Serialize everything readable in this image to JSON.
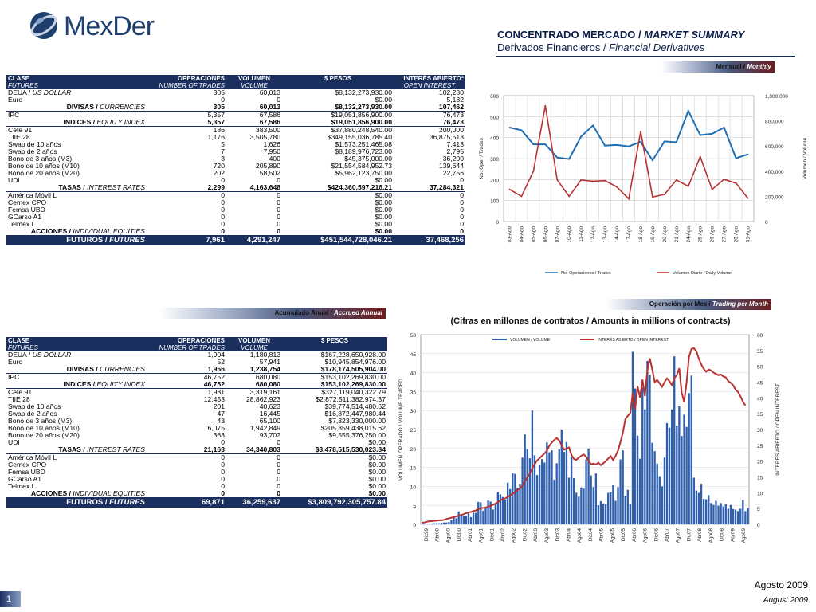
{
  "logo": {
    "text": "MexDer"
  },
  "header": {
    "title_es": "CONCENTRADO MERCADO / ",
    "title_en": "MARKET SUMMARY",
    "subtitle_es": "Derivados Financieros / ",
    "subtitle_en": "Financial Derivatives"
  },
  "banners": {
    "monthly": {
      "es": "Mensual / ",
      "en": "Monthly"
    },
    "annual": {
      "es": "Acumulado Anual / ",
      "en": "Accrued Annual"
    },
    "trading": {
      "es": "Operación por Mes / ",
      "en": "Trading per Month"
    }
  },
  "colors": {
    "navy": "#1b2f5f",
    "blue_series": "#1f6fb5",
    "red_series": "#b83232",
    "bar_blue": "#2e5fae",
    "line_red": "#b83232"
  },
  "table_monthly": {
    "headers": {
      "clase": "CLASE",
      "ops": "OPERACIONES",
      "vol": "VOLUMEN",
      "pesos": "$ PESOS",
      "oi": "INTERÉS ABIERTO*"
    },
    "headers_en": {
      "clase": "FUTURES",
      "ops": "NUMBER OF TRADES",
      "vol": "VOLUME",
      "oi": "OPEN INTEREST"
    },
    "rows": [
      {
        "type": "row",
        "label_es": "DEUA",
        "label_en": "US DOLLAR",
        "ops": "305",
        "vol": "60,013",
        "pesos": "$8,132,273,930.00",
        "oi": "102,280"
      },
      {
        "type": "row",
        "label_es": "Euro",
        "label_en": "",
        "ops": "0",
        "vol": "0",
        "pesos": "$0.00",
        "oi": "5,182"
      },
      {
        "type": "sub",
        "label_es": "DIVISAS",
        "label_en": "CURRENCIES",
        "ops": "305",
        "vol": "60,013",
        "pesos": "$8,132,273,930.00",
        "oi": "107,462"
      },
      {
        "type": "row",
        "label_es": "IPC",
        "label_en": "",
        "ops": "5,357",
        "vol": "67,586",
        "pesos": "$19,051,856,900.00",
        "oi": "76,473"
      },
      {
        "type": "sub",
        "label_es": "INDICES",
        "label_en": "EQUITY INDEX",
        "ops": "5,357",
        "vol": "67,586",
        "pesos": "$19,051,856,900.00",
        "oi": "76,473"
      },
      {
        "type": "row",
        "label_es": "Cete 91",
        "label_en": "",
        "ops": "186",
        "vol": "383,500",
        "pesos": "$37,880,248,540.00",
        "oi": "200,000"
      },
      {
        "type": "row",
        "label_es": "TIIE 28",
        "label_en": "",
        "ops": "1,176",
        "vol": "3,505,780",
        "pesos": "$349,155,036,785.40",
        "oi": "36,875,513"
      },
      {
        "type": "row",
        "label_es": "Swap de 10 años",
        "label_en": "",
        "ops": "5",
        "vol": "1,626",
        "pesos": "$1,573,251,465.08",
        "oi": "7,413"
      },
      {
        "type": "row",
        "label_es": "Swap de 2 años",
        "label_en": "",
        "ops": "7",
        "vol": "7,950",
        "pesos": "$8,189,976,723.00",
        "oi": "2,795"
      },
      {
        "type": "row",
        "label_es": "Bono de 3 años (M3)",
        "label_en": "",
        "ops": "3",
        "vol": "400",
        "pesos": "$45,375,000.00",
        "oi": "36,200"
      },
      {
        "type": "row",
        "label_es": "Bono de 10 años (M10)",
        "label_en": "",
        "ops": "720",
        "vol": "205,890",
        "pesos": "$21,554,584,952.73",
        "oi": "139,644"
      },
      {
        "type": "row",
        "label_es": "Bono de 20 años (M20)",
        "label_en": "",
        "ops": "202",
        "vol": "58,502",
        "pesos": "$5,962,123,750.00",
        "oi": "22,756"
      },
      {
        "type": "row",
        "label_es": "UDI",
        "label_en": "",
        "ops": "0",
        "vol": "0",
        "pesos": "$0.00",
        "oi": "0"
      },
      {
        "type": "sub",
        "label_es": "TASAS",
        "label_en": "INTEREST RATES",
        "ops": "2,299",
        "vol": "4,163,648",
        "pesos": "$424,360,597,216.21",
        "oi": "37,284,321"
      },
      {
        "type": "row",
        "label_es": "América Móvil L",
        "label_en": "",
        "ops": "0",
        "vol": "0",
        "pesos": "$0.00",
        "oi": "0"
      },
      {
        "type": "row",
        "label_es": "Cemex CPO",
        "label_en": "",
        "ops": "0",
        "vol": "0",
        "pesos": "$0.00",
        "oi": "0"
      },
      {
        "type": "row",
        "label_es": "Femsa UBD",
        "label_en": "",
        "ops": "0",
        "vol": "0",
        "pesos": "$0.00",
        "oi": "0"
      },
      {
        "type": "row",
        "label_es": "GCarso A1",
        "label_en": "",
        "ops": "0",
        "vol": "0",
        "pesos": "$0.00",
        "oi": "0"
      },
      {
        "type": "row",
        "label_es": "Telmex L",
        "label_en": "",
        "ops": "0",
        "vol": "0",
        "pesos": "$0.00",
        "oi": "0"
      },
      {
        "type": "sub",
        "label_es": "ACCIONES",
        "label_en": "INDIVIDUAL EQUITIES",
        "ops": "0",
        "vol": "0",
        "pesos": "$0.00",
        "oi": "0"
      },
      {
        "type": "tot",
        "label_es": "FUTUROS",
        "label_en": "FUTURES",
        "ops": "7,961",
        "vol": "4,291,247",
        "pesos": "$451,544,728,046.21",
        "oi": "37,468,256"
      }
    ]
  },
  "table_annual": {
    "headers": {
      "clase": "CLASE",
      "ops": "OPERACIONES",
      "vol": "VOLUMEN",
      "pesos": "$ PESOS"
    },
    "headers_en": {
      "clase": "FUTURES",
      "ops": "NUMBER OF TRADES",
      "vol": "VOLUME"
    },
    "rows": [
      {
        "type": "row",
        "label_es": "DEUA",
        "label_en": "US DOLLAR",
        "ops": "1,904",
        "vol": "1,180,813",
        "pesos": "$167,228,650,928.00"
      },
      {
        "type": "row",
        "label_es": "Euro",
        "label_en": "",
        "ops": "52",
        "vol": "57,941",
        "pesos": "$10,945,854,976.00"
      },
      {
        "type": "sub",
        "label_es": "DIVISAS",
        "label_en": "CURRENCIES",
        "ops": "1,956",
        "vol": "1,238,754",
        "pesos": "$178,174,505,904.00"
      },
      {
        "type": "row",
        "label_es": "IPC",
        "label_en": "",
        "ops": "46,752",
        "vol": "680,080",
        "pesos": "$153,102,269,830.00"
      },
      {
        "type": "sub",
        "label_es": "INDICES",
        "label_en": "EQUITY INDEX",
        "ops": "46,752",
        "vol": "680,080",
        "pesos": "$153,102,269,830.00"
      },
      {
        "type": "row",
        "label_es": "Cete 91",
        "label_en": "",
        "ops": "1,981",
        "vol": "3,319,161",
        "pesos": "$327,119,040,322.79"
      },
      {
        "type": "row",
        "label_es": "TIIE 28",
        "label_en": "",
        "ops": "12,453",
        "vol": "28,862,923",
        "pesos": "$2,872,511,382,974.37"
      },
      {
        "type": "row",
        "label_es": "Swap de 10 años",
        "label_en": "",
        "ops": "201",
        "vol": "40,623",
        "pesos": "$39,774,514,480.62"
      },
      {
        "type": "row",
        "label_es": "Swap de 2 años",
        "label_en": "",
        "ops": "47",
        "vol": "16,445",
        "pesos": "$16,872,447,980.44"
      },
      {
        "type": "row",
        "label_es": "Bono de 3 años (M3)",
        "label_en": "",
        "ops": "43",
        "vol": "65,100",
        "pesos": "$7,323,330,000.00"
      },
      {
        "type": "row",
        "label_es": "Bono de 10 años (M10)",
        "label_en": "",
        "ops": "6,075",
        "vol": "1,942,849",
        "pesos": "$205,359,438,015.62"
      },
      {
        "type": "row",
        "label_es": "Bono de 20 años (M20)",
        "label_en": "",
        "ops": "363",
        "vol": "93,702",
        "pesos": "$9,555,376,250.00"
      },
      {
        "type": "row",
        "label_es": "UDI",
        "label_en": "",
        "ops": "0",
        "vol": "0",
        "pesos": "$0.00"
      },
      {
        "type": "sub",
        "label_es": "TASAS",
        "label_en": "INTEREST RATES",
        "ops": "21,163",
        "vol": "34,340,803",
        "pesos": "$3,478,515,530,023.84"
      },
      {
        "type": "row",
        "label_es": "América Móvil L",
        "label_en": "",
        "ops": "0",
        "vol": "0",
        "pesos": "$0.00"
      },
      {
        "type": "row",
        "label_es": "Cemex CPO",
        "label_en": "",
        "ops": "0",
        "vol": "0",
        "pesos": "$0.00"
      },
      {
        "type": "row",
        "label_es": "Femsa UBD",
        "label_en": "",
        "ops": "0",
        "vol": "0",
        "pesos": "$0.00"
      },
      {
        "type": "row",
        "label_es": "GCarso A1",
        "label_en": "",
        "ops": "0",
        "vol": "0",
        "pesos": "$0.00"
      },
      {
        "type": "row",
        "label_es": "Telmex L",
        "label_en": "",
        "ops": "0",
        "vol": "0",
        "pesos": "$0.00"
      },
      {
        "type": "sub",
        "label_es": "ACCIONES",
        "label_en": "INDIVIDUAL EQUITIES",
        "ops": "0",
        "vol": "0",
        "pesos": "$0.00"
      },
      {
        "type": "tot",
        "label_es": "FUTUROS",
        "label_en": "FUTURES",
        "ops": "69,871",
        "vol": "36,259,637",
        "pesos": "$3,809,792,305,757.84"
      }
    ]
  },
  "chart_data": [
    {
      "type": "line",
      "x": [
        "03-Ago",
        "04-Ago",
        "05-Ago",
        "06-Ago",
        "07-Ago",
        "10-Ago",
        "11-Ago",
        "12-Ago",
        "13-Ago",
        "14-Ago",
        "17-Ago",
        "18-Ago",
        "19-Ago",
        "20-Ago",
        "21-Ago",
        "24-Ago",
        "25-Ago",
        "26-Ago",
        "27-Ago",
        "28-Ago",
        "31-Ago"
      ],
      "ylabel": "No. Oper / Trades",
      "y2label": "Volumen / Volume",
      "ylim": [
        0,
        600
      ],
      "y2lim": [
        0,
        1000000
      ],
      "y_ticks": [
        "0",
        "100",
        "200",
        "300",
        "400",
        "500",
        "600"
      ],
      "y2_ticks": [
        "0",
        "200,000",
        "400,000",
        "600,000",
        "800,000",
        "1,000,000"
      ],
      "series": [
        {
          "name": "No. Operaciones / Trades",
          "axis": "left",
          "values": [
            448,
            435,
            368,
            368,
            305,
            298,
            405,
            458,
            362,
            365,
            358,
            380,
            292,
            382,
            378,
            528,
            412,
            418,
            448,
            302,
            320
          ]
        },
        {
          "name": "Volumen Diario / Daily Volume",
          "axis": "right",
          "values": [
            255000,
            200000,
            400000,
            920000,
            330000,
            200000,
            330000,
            320000,
            325000,
            275000,
            180000,
            715000,
            195000,
            215000,
            330000,
            280000,
            515000,
            255000,
            335000,
            305000,
            185000
          ]
        }
      ],
      "legend": "bottom"
    },
    {
      "type": "bar",
      "title": "(Cifras en millones de contratos / Amounts in millions of contracts)",
      "x_ticks": [
        "Dic99",
        "Abr00",
        "Ago00",
        "Dic00",
        "Abr01",
        "Ago01",
        "Dic01",
        "Abr02",
        "Ago02",
        "Dic02",
        "Abr03",
        "Ago03",
        "Dic03",
        "Abr04",
        "Ago04",
        "Dic04",
        "Abr05",
        "Ago05",
        "Dic05",
        "Abr06",
        "Ago06",
        "Dic06",
        "Abr07",
        "Ago07",
        "Dic07",
        "Abr08",
        "Ago08",
        "Dic08",
        "Abr09",
        "Ago09"
      ],
      "ylabel": "VOLUMEN OPERADO / VOLUME TRADED",
      "y2label": "INTERÉS ABIERTO / OPEN INTEREST",
      "ylim": [
        0,
        50
      ],
      "y2lim": [
        0,
        60
      ],
      "y_ticks": [
        "0",
        "5",
        "10",
        "15",
        "20",
        "25",
        "30",
        "35",
        "40",
        "45",
        "50"
      ],
      "y2_ticks": [
        "0",
        "5",
        "10",
        "15",
        "20",
        "25",
        "30",
        "35",
        "40",
        "45",
        "50",
        "55",
        "60"
      ],
      "series": [
        {
          "name": "VOLUMEN / VOLUME",
          "axis": "left",
          "type": "bar",
          "values": [
            0.2,
            0.1,
            0.2,
            0.2,
            0.2,
            0.3,
            0.3,
            0.3,
            0.4,
            0.5,
            0.5,
            0.6,
            1.1,
            2.2,
            1.6,
            3.4,
            2.5,
            2.1,
            2.3,
            2.9,
            1.9,
            3.1,
            3.0,
            5.9,
            5.8,
            3.6,
            4.6,
            6.3,
            6.0,
            3.9,
            5.6,
            8.4,
            7.9,
            7.2,
            6.5,
            11.0,
            9.3,
            13.5,
            13.3,
            9.6,
            10.7,
            17.6,
            23.7,
            19.8,
            17.4,
            30.0,
            18.2,
            13.0,
            15.6,
            17.2,
            16.3,
            21.6,
            19.0,
            19.5,
            11.8,
            16.1,
            19.8,
            25.0,
            19.1,
            21.7,
            12.3,
            17.7,
            12.2,
            8.3,
            7.3,
            9.7,
            9.4,
            17.1,
            20.0,
            12.9,
            9.8,
            13.4,
            5.0,
            6.1,
            5.5,
            5.3,
            8.3,
            8.4,
            10.4,
            6.2,
            9.8,
            17.1,
            19.5,
            7.5,
            9.1,
            5.4,
            45.5,
            35.8,
            23.4,
            17.3,
            36.2,
            30.3,
            43.1,
            39.5,
            21.5,
            19.3,
            16.0,
            12.7,
            10.0,
            17.6,
            26.7,
            25.5,
            30.3,
            44.3,
            26.0,
            31.1,
            23.3,
            28.9,
            25.7,
            34.6,
            39.2,
            12.3,
            8.9,
            8.3,
            10.7,
            6.7,
            6.6,
            7.7,
            5.6,
            5.1,
            6.2,
            4.9,
            5.6,
            4.7,
            5.3,
            4.1,
            5.1,
            4.0,
            3.9,
            3.5,
            4.1,
            6.4,
            3.5,
            4.3
          ]
        },
        {
          "name": "INTERÉS ABIERTO / OPEN INTEREST",
          "axis": "right",
          "type": "line",
          "values": [
            0.5,
            0.6,
            0.8,
            1.0,
            1.0,
            1.1,
            1.2,
            1.3,
            1.3,
            1.4,
            1.7,
            1.9,
            2.1,
            2.3,
            2.5,
            2.8,
            3.0,
            3.2,
            3.5,
            3.8,
            3.9,
            4.2,
            4.4,
            4.8,
            5.1,
            5.2,
            5.3,
            5.6,
            5.8,
            6.2,
            6.5,
            7.0,
            7.6,
            8.0,
            8.2,
            8.7,
            9.1,
            9.7,
            10.2,
            11.0,
            11.2,
            12.3,
            13.6,
            15.0,
            16.1,
            17.8,
            19.0,
            20.2,
            20.9,
            21.7,
            22.4,
            23.3,
            24.9,
            25.9,
            26.7,
            27.3,
            26.5,
            25.1,
            23.6,
            24.0,
            24.3,
            22.0,
            20.7,
            20.4,
            21.1,
            21.7,
            22.1,
            21.4,
            20.1,
            19.0,
            19.2,
            18.9,
            19.5,
            18.7,
            19.3,
            20.0,
            20.8,
            21.6,
            20.3,
            21.6,
            23.3,
            26.0,
            29.0,
            33.3,
            34.3,
            35.2,
            41.5,
            36.4,
            43.7,
            40.1,
            45.8,
            40.6,
            48.7,
            52.5,
            49.0,
            45.0,
            45.7,
            44.6,
            43.5,
            45.0,
            46.2,
            45.3,
            44.1,
            46.3,
            47.2,
            49.4,
            41.7,
            38.7,
            44.9,
            53.0,
            55.5,
            55.7,
            54.8,
            52.4,
            50.6,
            49.2,
            48.3,
            49.0,
            48.7,
            48.0,
            47.6,
            47.2,
            47.4,
            46.8,
            46.5,
            45.3,
            44.8,
            44.0,
            42.6,
            41.9,
            40.5,
            38.8,
            37.6
          ]
        }
      ],
      "legend": "top"
    }
  ],
  "footer": {
    "date_es": "Agosto 2009",
    "date_en": "August 2009",
    "page": "1"
  }
}
